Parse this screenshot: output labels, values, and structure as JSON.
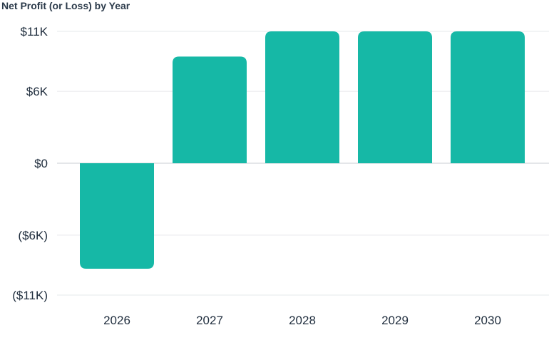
{
  "chart_data": {
    "type": "bar",
    "title": "Net Profit (or Loss) by Year",
    "categories": [
      "2026",
      "2027",
      "2028",
      "2029",
      "2030"
    ],
    "values": [
      -8800,
      8900,
      11000,
      11000,
      11000
    ],
    "ylim": [
      -12000,
      12000
    ],
    "yticks": [
      {
        "value": 11000,
        "label": "$11K"
      },
      {
        "value": 6000,
        "label": "$6K"
      },
      {
        "value": 0,
        "label": "$0"
      },
      {
        "value": -6000,
        "label": "($6K)"
      },
      {
        "value": -11000,
        "label": "($11K)"
      }
    ],
    "grid": true,
    "legend": "none",
    "colors": {
      "bar": "#16b8a6",
      "grid": "#e6e8eb",
      "zero_line": "#c9ced3",
      "text": "#1f2d3d"
    }
  }
}
